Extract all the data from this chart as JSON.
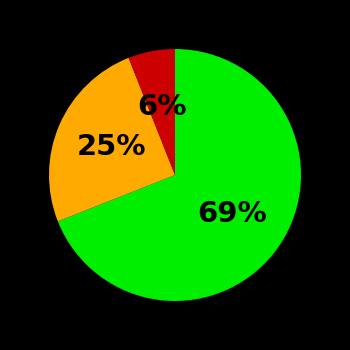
{
  "slices": [
    69,
    25,
    6
  ],
  "colors": [
    "#00ee00",
    "#ffaa00",
    "#cc0000"
  ],
  "labels": [
    "69%",
    "25%",
    "6%"
  ],
  "background_color": "#000000",
  "text_color": "#000000",
  "startangle": 90,
  "label_fontsize": 21,
  "label_fontweight": "bold",
  "label_radii": [
    0.55,
    0.55,
    0.55
  ]
}
